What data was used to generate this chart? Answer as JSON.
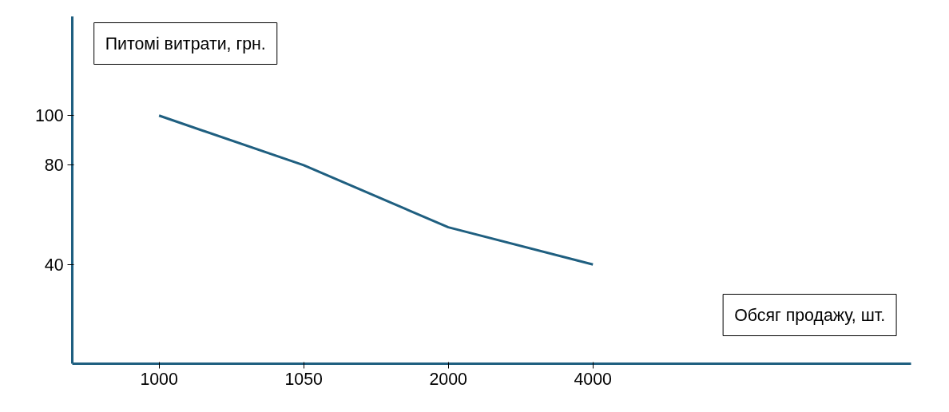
{
  "chart_data": {
    "type": "line",
    "ylabel": "Питомі витрати, грн.",
    "xlabel": "Обсяг продажу, шт.",
    "categories": [
      "1000",
      "1050",
      "2000",
      "4000"
    ],
    "series": [
      {
        "color": "#1f5f80",
        "values": [
          100,
          80,
          55,
          40
        ]
      }
    ],
    "ylim": [
      0,
      140
    ],
    "yticks": [
      40,
      80,
      100
    ],
    "grid": false,
    "marker": "none",
    "line_style": "solid"
  }
}
